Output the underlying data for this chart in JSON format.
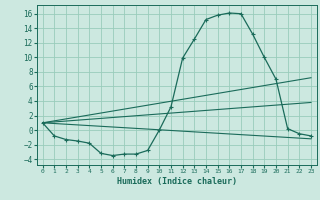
{
  "title": "",
  "xlabel": "Humidex (Indice chaleur)",
  "background_color": "#cce8e0",
  "grid_color": "#99ccbb",
  "line_color": "#1a6b5a",
  "xlim": [
    -0.5,
    23.5
  ],
  "ylim": [
    -4.8,
    17.2
  ],
  "xticks": [
    0,
    1,
    2,
    3,
    4,
    5,
    6,
    7,
    8,
    9,
    10,
    11,
    12,
    13,
    14,
    15,
    16,
    17,
    18,
    19,
    20,
    21,
    22,
    23
  ],
  "yticks": [
    -4,
    -2,
    0,
    2,
    4,
    6,
    8,
    10,
    12,
    14,
    16
  ],
  "main_curve_x": [
    0,
    1,
    2,
    3,
    4,
    5,
    6,
    7,
    8,
    9,
    10,
    11,
    12,
    13,
    14,
    15,
    16,
    17,
    18,
    19,
    20,
    21,
    22,
    23
  ],
  "main_curve_y": [
    1.0,
    -0.8,
    -1.3,
    -1.5,
    -1.8,
    -3.2,
    -3.5,
    -3.3,
    -3.3,
    -2.8,
    0.0,
    3.2,
    9.9,
    12.5,
    15.2,
    15.8,
    16.1,
    16.0,
    13.2,
    10.0,
    7.0,
    0.2,
    -0.5,
    -0.8
  ],
  "line1_x": [
    0,
    23
  ],
  "line1_y": [
    1.0,
    7.2
  ],
  "line2_x": [
    0,
    23
  ],
  "line2_y": [
    1.0,
    3.8
  ],
  "line3_x": [
    0,
    23
  ],
  "line3_y": [
    1.0,
    -1.2
  ]
}
